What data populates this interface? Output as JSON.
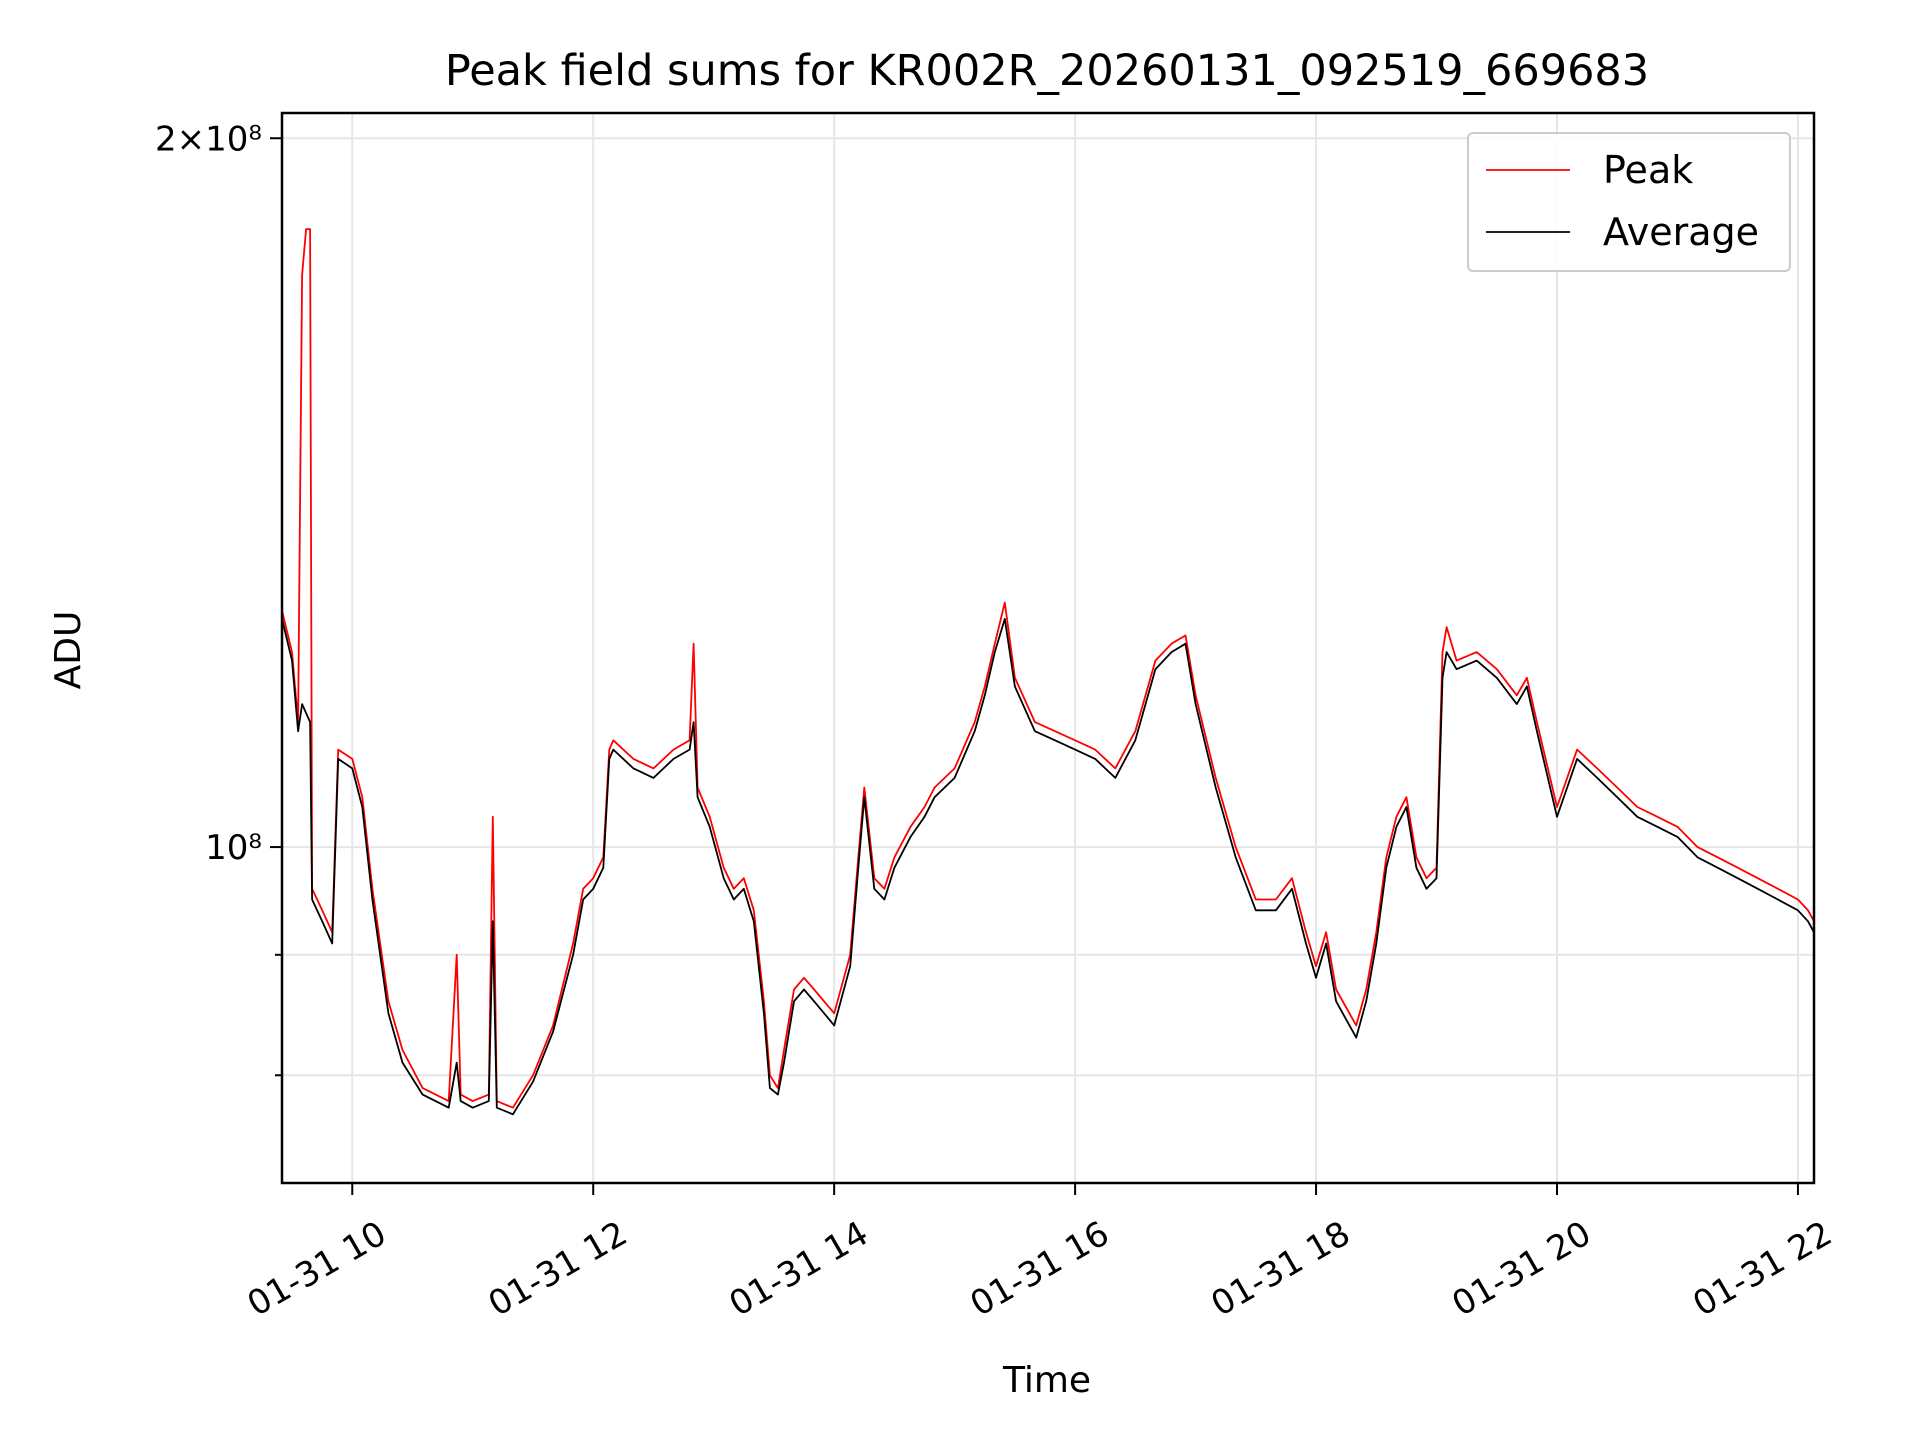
{
  "chart_data": {
    "type": "line",
    "title": "Peak field sums for KR002R_20260131_092519_669683",
    "xlabel": "Time",
    "ylabel": "ADU",
    "y_scale": "log",
    "xlim": [
      "2026-01-31 09:25",
      "2026-01-31 22:08"
    ],
    "ylim": [
      72000000,
      205000000
    ],
    "grid": true,
    "legend_position": "upper right",
    "x_ticks": [
      {
        "time": "2026-01-31 10:00",
        "label": "01-31 10"
      },
      {
        "time": "2026-01-31 12:00",
        "label": "01-31 12"
      },
      {
        "time": "2026-01-31 14:00",
        "label": "01-31 14"
      },
      {
        "time": "2026-01-31 16:00",
        "label": "01-31 16"
      },
      {
        "time": "2026-01-31 18:00",
        "label": "01-31 18"
      },
      {
        "time": "2026-01-31 20:00",
        "label": "01-31 20"
      },
      {
        "time": "2026-01-31 22:00",
        "label": "01-31 22"
      }
    ],
    "y_ticks": [
      {
        "value": 200000000,
        "label": "2×10⁸"
      },
      {
        "value": 100000000,
        "label": "10⁸"
      }
    ],
    "y_minor_gridlines": [
      90000000,
      80000000
    ],
    "series": [
      {
        "name": "Peak",
        "color": "#ff0000",
        "points": [
          [
            "2026-01-31 09:25",
            126000000
          ],
          [
            "2026-01-31 09:30",
            121000000
          ],
          [
            "2026-01-31 09:33",
            113000000
          ],
          [
            "2026-01-31 09:35",
            175000000
          ],
          [
            "2026-01-31 09:37",
            183000000
          ],
          [
            "2026-01-31 09:39",
            183000000
          ],
          [
            "2026-01-31 09:40",
            96000000
          ],
          [
            "2026-01-31 09:45",
            94000000
          ],
          [
            "2026-01-31 09:50",
            92000000
          ],
          [
            "2026-01-31 09:53",
            110000000
          ],
          [
            "2026-01-31 10:00",
            109000000
          ],
          [
            "2026-01-31 10:05",
            105000000
          ],
          [
            "2026-01-31 10:10",
            96000000
          ],
          [
            "2026-01-31 10:18",
            86000000
          ],
          [
            "2026-01-31 10:25",
            82000000
          ],
          [
            "2026-01-31 10:35",
            79000000
          ],
          [
            "2026-01-31 10:48",
            78000000
          ],
          [
            "2026-01-31 10:52",
            90000000
          ],
          [
            "2026-01-31 10:54",
            78500000
          ],
          [
            "2026-01-31 11:00",
            78000000
          ],
          [
            "2026-01-31 11:08",
            78500000
          ],
          [
            "2026-01-31 11:10",
            103000000
          ],
          [
            "2026-01-31 11:12",
            78000000
          ],
          [
            "2026-01-31 11:20",
            77500000
          ],
          [
            "2026-01-31 11:30",
            80000000
          ],
          [
            "2026-01-31 11:40",
            84000000
          ],
          [
            "2026-01-31 11:50",
            91000000
          ],
          [
            "2026-01-31 11:55",
            96000000
          ],
          [
            "2026-01-31 12:00",
            97000000
          ],
          [
            "2026-01-31 12:05",
            99000000
          ],
          [
            "2026-01-31 12:08",
            110000000
          ],
          [
            "2026-01-31 12:10",
            111000000
          ],
          [
            "2026-01-31 12:20",
            109000000
          ],
          [
            "2026-01-31 12:30",
            108000000
          ],
          [
            "2026-01-31 12:40",
            110000000
          ],
          [
            "2026-01-31 12:48",
            111000000
          ],
          [
            "2026-01-31 12:50",
            122000000
          ],
          [
            "2026-01-31 12:52",
            106000000
          ],
          [
            "2026-01-31 12:58",
            103000000
          ],
          [
            "2026-01-31 13:05",
            98000000
          ],
          [
            "2026-01-31 13:10",
            96000000
          ],
          [
            "2026-01-31 13:15",
            97000000
          ],
          [
            "2026-01-31 13:20",
            94000000
          ],
          [
            "2026-01-31 13:25",
            86000000
          ],
          [
            "2026-01-31 13:28",
            80000000
          ],
          [
            "2026-01-31 13:32",
            79000000
          ],
          [
            "2026-01-31 13:35",
            82000000
          ],
          [
            "2026-01-31 13:40",
            87000000
          ],
          [
            "2026-01-31 13:45",
            88000000
          ],
          [
            "2026-01-31 13:50",
            87000000
          ],
          [
            "2026-01-31 14:00",
            85000000
          ],
          [
            "2026-01-31 14:08",
            90000000
          ],
          [
            "2026-01-31 14:12",
            99000000
          ],
          [
            "2026-01-31 14:15",
            106000000
          ],
          [
            "2026-01-31 14:20",
            97000000
          ],
          [
            "2026-01-31 14:25",
            96000000
          ],
          [
            "2026-01-31 14:30",
            99000000
          ],
          [
            "2026-01-31 14:38",
            102000000
          ],
          [
            "2026-01-31 14:45",
            104000000
          ],
          [
            "2026-01-31 14:50",
            106000000
          ],
          [
            "2026-01-31 15:00",
            108000000
          ],
          [
            "2026-01-31 15:10",
            113000000
          ],
          [
            "2026-01-31 15:15",
            117000000
          ],
          [
            "2026-01-31 15:20",
            122000000
          ],
          [
            "2026-01-31 15:25",
            127000000
          ],
          [
            "2026-01-31 15:30",
            118000000
          ],
          [
            "2026-01-31 15:40",
            113000000
          ],
          [
            "2026-01-31 15:50",
            112000000
          ],
          [
            "2026-01-31 16:00",
            111000000
          ],
          [
            "2026-01-31 16:10",
            110000000
          ],
          [
            "2026-01-31 16:20",
            108000000
          ],
          [
            "2026-01-31 16:30",
            112000000
          ],
          [
            "2026-01-31 16:40",
            120000000
          ],
          [
            "2026-01-31 16:48",
            122000000
          ],
          [
            "2026-01-31 16:55",
            123000000
          ],
          [
            "2026-01-31 17:00",
            116000000
          ],
          [
            "2026-01-31 17:10",
            107000000
          ],
          [
            "2026-01-31 17:20",
            100000000
          ],
          [
            "2026-01-31 17:30",
            95000000
          ],
          [
            "2026-01-31 17:40",
            95000000
          ],
          [
            "2026-01-31 17:48",
            97000000
          ],
          [
            "2026-01-31 17:55",
            92000000
          ],
          [
            "2026-01-31 18:00",
            89000000
          ],
          [
            "2026-01-31 18:05",
            92000000
          ],
          [
            "2026-01-31 18:10",
            87000000
          ],
          [
            "2026-01-31 18:20",
            84000000
          ],
          [
            "2026-01-31 18:25",
            87000000
          ],
          [
            "2026-01-31 18:30",
            92000000
          ],
          [
            "2026-01-31 18:35",
            99000000
          ],
          [
            "2026-01-31 18:40",
            103000000
          ],
          [
            "2026-01-31 18:45",
            105000000
          ],
          [
            "2026-01-31 18:50",
            99000000
          ],
          [
            "2026-01-31 18:55",
            97000000
          ],
          [
            "2026-01-31 19:00",
            98000000
          ],
          [
            "2026-01-31 19:03",
            121000000
          ],
          [
            "2026-01-31 19:05",
            124000000
          ],
          [
            "2026-01-31 19:10",
            120000000
          ],
          [
            "2026-01-31 19:20",
            121000000
          ],
          [
            "2026-01-31 19:30",
            119000000
          ],
          [
            "2026-01-31 19:40",
            116000000
          ],
          [
            "2026-01-31 19:45",
            118000000
          ],
          [
            "2026-01-31 19:50",
            113000000
          ],
          [
            "2026-01-31 20:00",
            104000000
          ],
          [
            "2026-01-31 20:10",
            110000000
          ],
          [
            "2026-01-31 20:20",
            108000000
          ],
          [
            "2026-01-31 20:30",
            106000000
          ],
          [
            "2026-01-31 20:40",
            104000000
          ],
          [
            "2026-01-31 20:50",
            103000000
          ],
          [
            "2026-01-31 21:00",
            102000000
          ],
          [
            "2026-01-31 21:10",
            100000000
          ],
          [
            "2026-01-31 21:20",
            99000000
          ],
          [
            "2026-01-31 21:30",
            98000000
          ],
          [
            "2026-01-31 21:40",
            97000000
          ],
          [
            "2026-01-31 21:50",
            96000000
          ],
          [
            "2026-01-31 22:00",
            95000000
          ],
          [
            "2026-01-31 22:05",
            94000000
          ],
          [
            "2026-01-31 22:08",
            93000000
          ]
        ]
      },
      {
        "name": "Average",
        "color": "#000000",
        "points": [
          [
            "2026-01-31 09:25",
            125000000
          ],
          [
            "2026-01-31 09:30",
            120000000
          ],
          [
            "2026-01-31 09:33",
            112000000
          ],
          [
            "2026-01-31 09:35",
            115000000
          ],
          [
            "2026-01-31 09:39",
            113000000
          ],
          [
            "2026-01-31 09:40",
            95000000
          ],
          [
            "2026-01-31 09:45",
            93000000
          ],
          [
            "2026-01-31 09:50",
            91000000
          ],
          [
            "2026-01-31 09:53",
            109000000
          ],
          [
            "2026-01-31 10:00",
            108000000
          ],
          [
            "2026-01-31 10:05",
            104000000
          ],
          [
            "2026-01-31 10:10",
            95000000
          ],
          [
            "2026-01-31 10:18",
            85000000
          ],
          [
            "2026-01-31 10:25",
            81000000
          ],
          [
            "2026-01-31 10:35",
            78500000
          ],
          [
            "2026-01-31 10:48",
            77500000
          ],
          [
            "2026-01-31 10:52",
            81000000
          ],
          [
            "2026-01-31 10:54",
            78000000
          ],
          [
            "2026-01-31 11:00",
            77500000
          ],
          [
            "2026-01-31 11:08",
            78000000
          ],
          [
            "2026-01-31 11:10",
            93000000
          ],
          [
            "2026-01-31 11:12",
            77500000
          ],
          [
            "2026-01-31 11:20",
            77000000
          ],
          [
            "2026-01-31 11:30",
            79500000
          ],
          [
            "2026-01-31 11:40",
            83500000
          ],
          [
            "2026-01-31 11:50",
            90000000
          ],
          [
            "2026-01-31 11:55",
            95000000
          ],
          [
            "2026-01-31 12:00",
            96000000
          ],
          [
            "2026-01-31 12:05",
            98000000
          ],
          [
            "2026-01-31 12:08",
            109000000
          ],
          [
            "2026-01-31 12:10",
            110000000
          ],
          [
            "2026-01-31 12:20",
            108000000
          ],
          [
            "2026-01-31 12:30",
            107000000
          ],
          [
            "2026-01-31 12:40",
            109000000
          ],
          [
            "2026-01-31 12:48",
            110000000
          ],
          [
            "2026-01-31 12:50",
            113000000
          ],
          [
            "2026-01-31 12:52",
            105000000
          ],
          [
            "2026-01-31 12:58",
            102000000
          ],
          [
            "2026-01-31 13:05",
            97000000
          ],
          [
            "2026-01-31 13:10",
            95000000
          ],
          [
            "2026-01-31 13:15",
            96000000
          ],
          [
            "2026-01-31 13:20",
            93000000
          ],
          [
            "2026-01-31 13:25",
            85000000
          ],
          [
            "2026-01-31 13:28",
            79000000
          ],
          [
            "2026-01-31 13:32",
            78500000
          ],
          [
            "2026-01-31 13:35",
            81000000
          ],
          [
            "2026-01-31 13:40",
            86000000
          ],
          [
            "2026-01-31 13:45",
            87000000
          ],
          [
            "2026-01-31 13:50",
            86000000
          ],
          [
            "2026-01-31 14:00",
            84000000
          ],
          [
            "2026-01-31 14:08",
            89000000
          ],
          [
            "2026-01-31 14:12",
            98000000
          ],
          [
            "2026-01-31 14:15",
            105000000
          ],
          [
            "2026-01-31 14:20",
            96000000
          ],
          [
            "2026-01-31 14:25",
            95000000
          ],
          [
            "2026-01-31 14:30",
            98000000
          ],
          [
            "2026-01-31 14:38",
            101000000
          ],
          [
            "2026-01-31 14:45",
            103000000
          ],
          [
            "2026-01-31 14:50",
            105000000
          ],
          [
            "2026-01-31 15:00",
            107000000
          ],
          [
            "2026-01-31 15:10",
            112000000
          ],
          [
            "2026-01-31 15:15",
            116000000
          ],
          [
            "2026-01-31 15:20",
            121000000
          ],
          [
            "2026-01-31 15:25",
            125000000
          ],
          [
            "2026-01-31 15:30",
            117000000
          ],
          [
            "2026-01-31 15:40",
            112000000
          ],
          [
            "2026-01-31 15:50",
            111000000
          ],
          [
            "2026-01-31 16:00",
            110000000
          ],
          [
            "2026-01-31 16:10",
            109000000
          ],
          [
            "2026-01-31 16:20",
            107000000
          ],
          [
            "2026-01-31 16:30",
            111000000
          ],
          [
            "2026-01-31 16:40",
            119000000
          ],
          [
            "2026-01-31 16:48",
            121000000
          ],
          [
            "2026-01-31 16:55",
            122000000
          ],
          [
            "2026-01-31 17:00",
            115000000
          ],
          [
            "2026-01-31 17:10",
            106000000
          ],
          [
            "2026-01-31 17:20",
            99000000
          ],
          [
            "2026-01-31 17:30",
            94000000
          ],
          [
            "2026-01-31 17:40",
            94000000
          ],
          [
            "2026-01-31 17:48",
            96000000
          ],
          [
            "2026-01-31 17:55",
            91000000
          ],
          [
            "2026-01-31 18:00",
            88000000
          ],
          [
            "2026-01-31 18:05",
            91000000
          ],
          [
            "2026-01-31 18:10",
            86000000
          ],
          [
            "2026-01-31 18:20",
            83000000
          ],
          [
            "2026-01-31 18:25",
            86000000
          ],
          [
            "2026-01-31 18:30",
            91000000
          ],
          [
            "2026-01-31 18:35",
            98000000
          ],
          [
            "2026-01-31 18:40",
            102000000
          ],
          [
            "2026-01-31 18:45",
            104000000
          ],
          [
            "2026-01-31 18:50",
            98000000
          ],
          [
            "2026-01-31 18:55",
            96000000
          ],
          [
            "2026-01-31 19:00",
            97000000
          ],
          [
            "2026-01-31 19:03",
            118000000
          ],
          [
            "2026-01-31 19:05",
            121000000
          ],
          [
            "2026-01-31 19:10",
            119000000
          ],
          [
            "2026-01-31 19:20",
            120000000
          ],
          [
            "2026-01-31 19:30",
            118000000
          ],
          [
            "2026-01-31 19:40",
            115000000
          ],
          [
            "2026-01-31 19:45",
            117000000
          ],
          [
            "2026-01-31 19:50",
            112000000
          ],
          [
            "2026-01-31 20:00",
            103000000
          ],
          [
            "2026-01-31 20:10",
            109000000
          ],
          [
            "2026-01-31 20:20",
            107000000
          ],
          [
            "2026-01-31 20:30",
            105000000
          ],
          [
            "2026-01-31 20:40",
            103000000
          ],
          [
            "2026-01-31 20:50",
            102000000
          ],
          [
            "2026-01-31 21:00",
            101000000
          ],
          [
            "2026-01-31 21:10",
            99000000
          ],
          [
            "2026-01-31 21:20",
            98000000
          ],
          [
            "2026-01-31 21:30",
            97000000
          ],
          [
            "2026-01-31 21:40",
            96000000
          ],
          [
            "2026-01-31 21:50",
            95000000
          ],
          [
            "2026-01-31 22:00",
            94000000
          ],
          [
            "2026-01-31 22:05",
            93000000
          ],
          [
            "2026-01-31 22:08",
            92000000
          ]
        ]
      }
    ]
  }
}
